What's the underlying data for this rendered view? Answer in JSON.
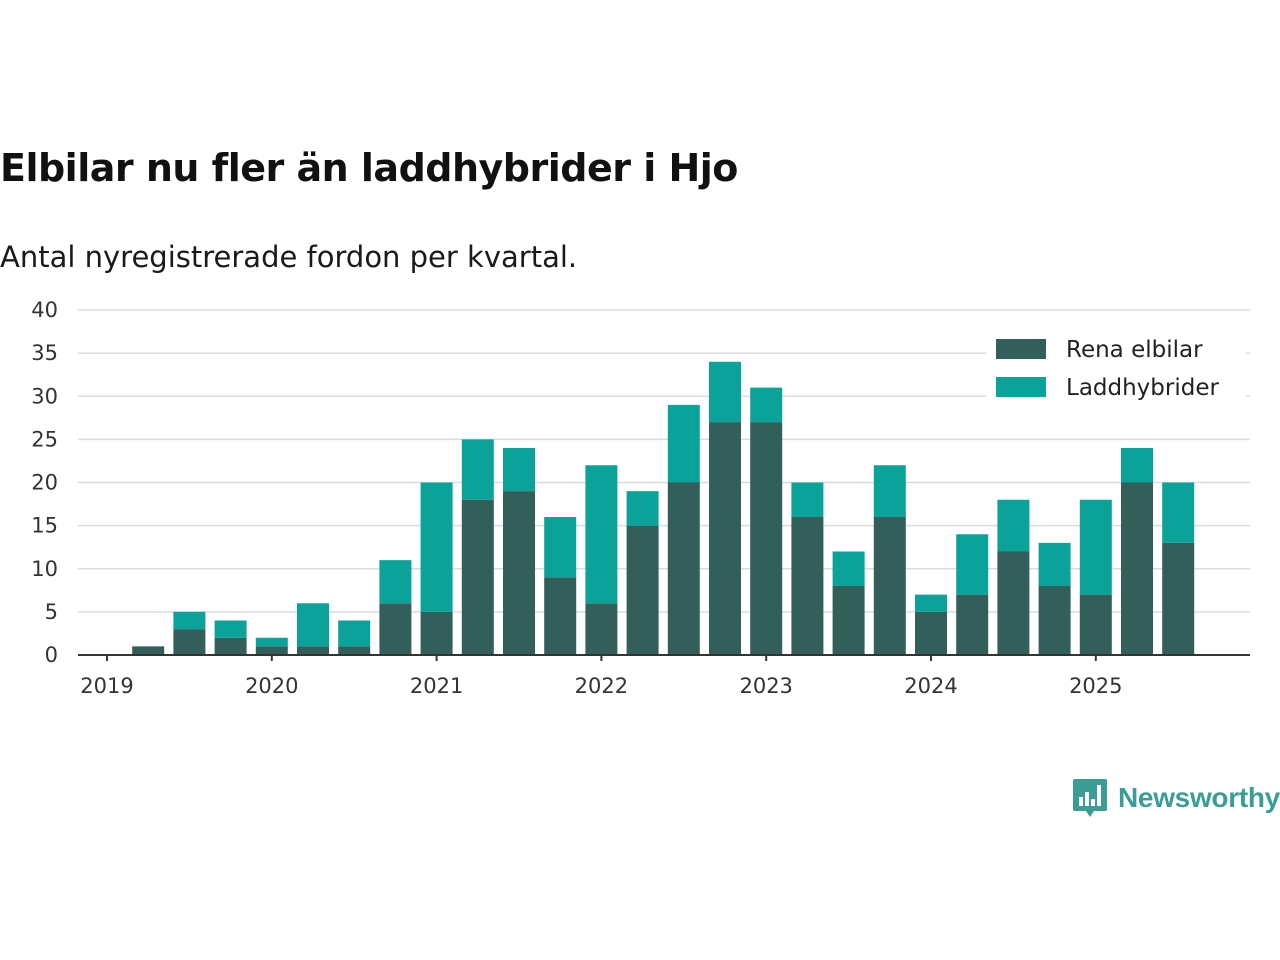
{
  "colors": {
    "electric": "#335f5b",
    "hybrid": "#0ba29a",
    "grid": "#d9dcdf",
    "axis": "#333333",
    "brand": "#3a9d96"
  },
  "brand": {
    "name": "Newsworthy",
    "icon": "bar-chart-speech-bubble-icon"
  },
  "chart_data": {
    "type": "bar",
    "stacked": true,
    "title": "Elbilar nu fler än laddhybrider i Hjo",
    "subtitle": "Antal nyregistrerade fordon per kvartal.",
    "xlabel": "",
    "ylabel": "",
    "ylim": [
      0,
      40
    ],
    "yticks": [
      "0",
      "5",
      "10",
      "15",
      "20",
      "25",
      "30",
      "35",
      "40"
    ],
    "x_tick_labels": [
      "2019",
      "2020",
      "2021",
      "2022",
      "2023",
      "2024",
      "2025"
    ],
    "categories": [
      "2019 Q1",
      "2019 Q2",
      "2019 Q3",
      "2019 Q4",
      "2020 Q1",
      "2020 Q2",
      "2020 Q3",
      "2020 Q4",
      "2021 Q1",
      "2021 Q2",
      "2021 Q3",
      "2021 Q4",
      "2022 Q1",
      "2022 Q2",
      "2022 Q3",
      "2022 Q4",
      "2023 Q1",
      "2023 Q2",
      "2023 Q3",
      "2023 Q4",
      "2024 Q1",
      "2024 Q2",
      "2024 Q3",
      "2024 Q4",
      "2025 Q1",
      "2025 Q2",
      "2025 Q3"
    ],
    "series": [
      {
        "name": "Rena elbilar",
        "values": [
          0,
          1,
          3,
          2,
          1,
          1,
          1,
          6,
          5,
          18,
          19,
          9,
          6,
          15,
          20,
          27,
          27,
          16,
          8,
          16,
          5,
          7,
          12,
          8,
          7,
          20,
          13
        ]
      },
      {
        "name": "Laddhybrider",
        "values": [
          0,
          0,
          2,
          2,
          1,
          5,
          3,
          5,
          15,
          7,
          5,
          7,
          16,
          4,
          9,
          7,
          4,
          4,
          4,
          6,
          2,
          7,
          6,
          5,
          11,
          4,
          7
        ]
      }
    ],
    "legend_position": "top-right"
  }
}
